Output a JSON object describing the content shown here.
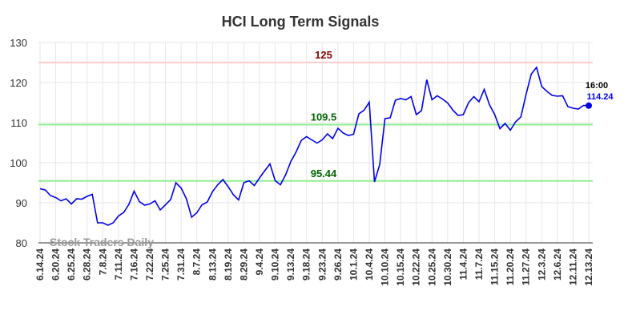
{
  "chart_data": {
    "type": "line",
    "title": "HCI Long Term Signals",
    "categories": [
      "6.14.24",
      null,
      null,
      "6.20.24",
      null,
      null,
      "6.25.24",
      null,
      null,
      "6.28.24",
      null,
      null,
      "7.8.24",
      null,
      null,
      "7.11.24",
      null,
      null,
      "7.16.24",
      null,
      null,
      "7.22.24",
      null,
      null,
      "7.25.24",
      null,
      null,
      "7.31.24",
      null,
      null,
      "8.7.24",
      null,
      null,
      "8.13.24",
      null,
      null,
      "8.19.24",
      null,
      null,
      "8.29.24",
      null,
      null,
      "9.4.24",
      null,
      null,
      "9.10.24",
      null,
      null,
      "9.13.24",
      null,
      null,
      "9.18.24",
      null,
      null,
      "9.23.24",
      null,
      null,
      "9.26.24",
      null,
      null,
      "10.1.24",
      null,
      null,
      "10.4.24",
      null,
      null,
      "10.10.24",
      null,
      null,
      "10.15.24",
      null,
      null,
      "10.22.24",
      null,
      null,
      "10.25.24",
      null,
      null,
      "10.30.24",
      null,
      null,
      "11.4.24",
      null,
      null,
      "11.7.24",
      null,
      null,
      "11.15.24",
      null,
      null,
      "11.20.24",
      null,
      null,
      "11.27.24",
      null,
      null,
      "12.3.24",
      null,
      null,
      "12.6.24",
      null,
      null,
      "12.11.24",
      null,
      null,
      "12.13.24"
    ],
    "values": [
      93.5,
      93.2,
      91.8,
      91.3,
      90.5,
      91,
      89.7,
      91,
      90.9,
      91.6,
      92.1,
      85,
      85,
      84.4,
      85,
      86.7,
      87.6,
      89.6,
      92.9,
      90.3,
      89.4,
      89.7,
      90.5,
      88.2,
      89.5,
      90.8,
      95,
      93.7,
      91,
      86.4,
      87.5,
      89.5,
      90.2,
      92.8,
      94.5,
      95.8,
      94,
      92,
      90.7,
      95,
      95.5,
      94.3,
      96.2,
      98,
      99.7,
      95.5,
      94.5,
      97,
      100.3,
      102.7,
      105.6,
      106.5,
      105.7,
      104.9,
      105.7,
      107.2,
      106,
      108.6,
      107.4,
      106.8,
      107.1,
      112.2,
      113.1,
      115.1,
      95.2,
      99.5,
      111,
      111.2,
      115.6,
      116,
      115.7,
      116.5,
      112,
      113,
      120.7,
      115.7,
      116.7,
      115.9,
      114.9,
      113.1,
      111.8,
      112,
      115,
      116.5,
      115.2,
      118.3,
      114.5,
      112,
      108.5,
      109.8,
      108.1,
      110.2,
      111.4,
      117,
      122.1,
      123.8,
      119,
      117.8,
      116.8,
      116.6,
      116.7,
      114,
      113.6,
      113.4,
      114.3,
      114.24
    ],
    "color": "#0000ee",
    "ylim": [
      80,
      130
    ],
    "yticks": [
      80,
      90,
      100,
      110,
      120,
      130
    ],
    "grid": true,
    "reference_lines": [
      {
        "value": 125,
        "color": "#ffcccc",
        "label_color": "#8b0000"
      },
      {
        "value": 109.5,
        "color": "#90ee90",
        "label_color": "#006400"
      },
      {
        "value": 95.44,
        "color": "#90ee90",
        "label_color": "#006400"
      }
    ],
    "last_point_time": "16:00",
    "watermark": "Stock Traders Daily"
  }
}
